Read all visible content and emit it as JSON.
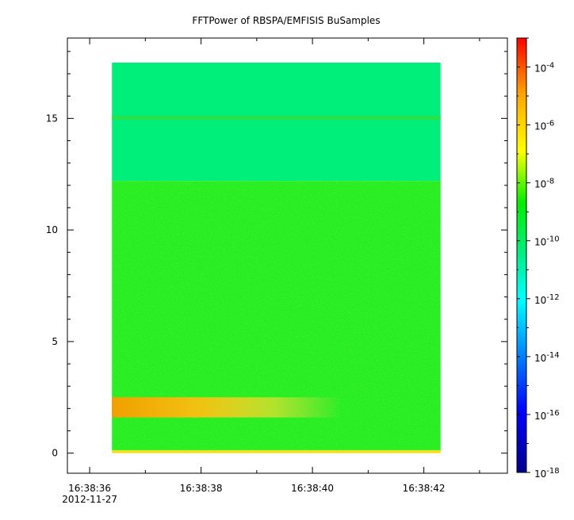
{
  "chart_data": {
    "type": "heatmap",
    "title": "FFTPower of RBSPA/EMFISIS  BuSamples",
    "x_ticks": [
      {
        "time": "16:38:36",
        "label": "16:38:36",
        "sublabel": "2012-11-27"
      },
      {
        "time": "16:38:38",
        "label": "16:38:38"
      },
      {
        "time": "16:38:40",
        "label": "16:38:40"
      },
      {
        "time": "16:38:42",
        "label": "16:38:42"
      }
    ],
    "xlim": [
      "16:38:35.6",
      "16:38:43.5"
    ],
    "data_x_range": [
      "16:38:36.4",
      "16:38:42.3"
    ],
    "y_ticks": [
      0,
      5,
      10,
      15
    ],
    "ylim": [
      -0.9,
      18.6
    ],
    "data_y_range": [
      0,
      17.5
    ],
    "colorbar": {
      "scale": "log",
      "range": [
        1e-18,
        0.001
      ],
      "ticks": [
        {
          "base": "10",
          "exp": "-18",
          "value": 1e-18
        },
        {
          "base": "10",
          "exp": "-16",
          "value": 1e-16
        },
        {
          "base": "10",
          "exp": "-14",
          "value": 1e-14
        },
        {
          "base": "10",
          "exp": "-12",
          "value": 1e-12
        },
        {
          "base": "10",
          "exp": "-10",
          "value": 1e-10
        },
        {
          "base": "10",
          "exp": "-8",
          "value": 1e-08
        },
        {
          "base": "10",
          "exp": "-6",
          "value": 1e-06
        },
        {
          "base": "10",
          "exp": "-4",
          "value": 0.0001
        }
      ],
      "colors": [
        "#00008b",
        "#0000ff",
        "#00ffff",
        "#00ff00",
        "#ffff00",
        "#ff0000"
      ]
    },
    "regions": [
      {
        "y": [
          12.2,
          17.5
        ],
        "level": "1e-12",
        "color": "#00ef7a"
      },
      {
        "y": [
          0.1,
          12.2
        ],
        "level": "1e-11",
        "color": "#22ee22"
      },
      {
        "y": [
          14.95,
          15.1
        ],
        "level": "1e-11",
        "color": "#30e040"
      },
      {
        "y": [
          1.6,
          2.5
        ],
        "level": "1e-8",
        "color": "#f2b010"
      },
      {
        "y": [
          0,
          0.1
        ],
        "level": "1e-8",
        "color": "#f0e020"
      }
    ]
  }
}
